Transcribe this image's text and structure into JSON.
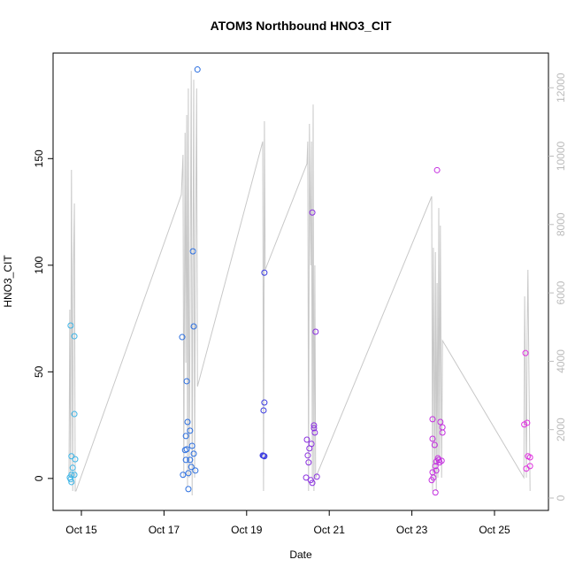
{
  "chart_data": {
    "type": "scatter",
    "title": "ATOM3 Northbound HNO3_CIT",
    "x_label": "Date",
    "y_label": "HNO3_CIT",
    "xlim": [
      14.315,
      26.306
    ],
    "ylim": [
      -15,
      199.5
    ],
    "y2lim": [
      -362,
      13014
    ],
    "xticks": [
      {
        "value": 15,
        "label": "Oct 15"
      },
      {
        "value": 17,
        "label": "Oct 17"
      },
      {
        "value": 19,
        "label": "Oct 19"
      },
      {
        "value": 21,
        "label": "Oct 21"
      },
      {
        "value": 23,
        "label": "Oct 23"
      },
      {
        "value": 25,
        "label": "Oct 25"
      }
    ],
    "yticks": [
      0,
      50,
      100,
      150
    ],
    "y2ticks": [
      0,
      2000,
      4000,
      6000,
      8000,
      10000,
      12000
    ],
    "series": [
      {
        "axis": "y2",
        "color": "#c8c8c8",
        "x": [
          14.7,
          14.72,
          14.74,
          14.76,
          14.79,
          14.81,
          14.83,
          14.85,
          14.87,
          17.42,
          17.46,
          17.48,
          17.51,
          17.53,
          17.55,
          17.57,
          17.59,
          17.61,
          17.66,
          17.68,
          17.7,
          17.72,
          17.74,
          17.76,
          17.79,
          17.81,
          19.39,
          19.41,
          19.43,
          19.45,
          20.46,
          20.48,
          20.5,
          20.52,
          20.55,
          20.57,
          20.59,
          20.61,
          20.63,
          20.65,
          20.67,
          23.48,
          23.5,
          23.52,
          23.55,
          23.57,
          23.59,
          23.61,
          23.63,
          23.65,
          23.67,
          23.69,
          23.72,
          23.74,
          25.71,
          25.73,
          25.77,
          25.79,
          25.81,
          25.86
        ],
        "values": [
          595,
          5510,
          595,
          9598,
          207,
          6804,
          8615,
          207,
          207,
          8873,
          10038,
          595,
          10684,
          3958,
          11202,
          336,
          11978,
          595,
          12495,
          78,
          6804,
          12236,
          595,
          6804,
          11978,
          3260,
          10426,
          207,
          11021,
          6675,
          9779,
          10426,
          207,
          10943,
          6804,
          10426,
          595,
          11512,
          207,
          6804,
          595,
          8822,
          207,
          7321,
          595,
          7192,
          207,
          6286,
          595,
          8485,
          1112,
          7968,
          595,
          4605,
          595,
          5898,
          595,
          4786,
          6675,
          207
        ]
      },
      {
        "color": "#3cb4e6",
        "x": [
          14.74,
          14.76,
          14.74,
          14.76,
          14.79,
          14.76,
          14.83,
          14.83,
          14.83,
          14.85,
          14.72
        ],
        "values": [
          71.7,
          1.7,
          -0.4,
          -1.7,
          5,
          10.4,
          66.7,
          30.2,
          1.7,
          9,
          0.4
        ]
      },
      {
        "color": "#2a6ee0",
        "x": [
          17.81,
          17.7,
          17.72,
          17.44,
          17.55,
          17.57,
          17.53,
          17.63,
          17.51,
          17.55,
          17.68,
          17.72,
          17.63,
          17.53,
          17.66,
          17.76,
          17.59,
          17.46,
          17.59
        ],
        "values": [
          191.8,
          106.5,
          71.3,
          66.3,
          45.6,
          26.5,
          19.9,
          22.4,
          13.3,
          13.7,
          15.3,
          11.6,
          8.7,
          8.7,
          5.4,
          3.7,
          2.5,
          1.7,
          -5
        ]
      },
      {
        "color": "#3a3ae0",
        "x": [
          19.43,
          19.43,
          19.41,
          19.39,
          19.43,
          19.41
        ],
        "values": [
          96.5,
          35.6,
          31.9,
          10.8,
          10.4,
          10.6
        ]
      },
      {
        "color": "#8a2ee0",
        "x": [
          20.59,
          20.67,
          20.63,
          20.63,
          20.65,
          20.46,
          20.57,
          20.52,
          20.48,
          20.5,
          20.44,
          20.7,
          20.55,
          20.59
        ],
        "values": [
          124.7,
          68.8,
          24.9,
          23.6,
          21.5,
          18.2,
          16.2,
          14.1,
          10.8,
          7.5,
          0.4,
          0.8,
          -0.8,
          -2.1
        ]
      },
      {
        "color": "#c42ee0",
        "x": [
          23.61,
          23.5,
          23.5,
          23.55,
          23.69,
          23.74,
          23.74,
          23.65,
          23.67,
          23.59,
          23.63,
          23.72,
          23.57,
          23.5,
          23.48,
          23.52,
          23.59,
          23.57
        ],
        "values": [
          144.6,
          27.8,
          18.6,
          15.7,
          26.5,
          24.0,
          21.5,
          8.7,
          7.5,
          7.9,
          9.5,
          8.3,
          5.8,
          2.9,
          -0.8,
          0.4,
          3.7,
          -6.6
        ]
      },
      {
        "color": "#e030e0",
        "x": [
          25.75,
          25.79,
          25.72,
          25.81,
          25.86,
          25.77,
          25.86
        ],
        "values": [
          58.8,
          26.1,
          25.3,
          10.4,
          9.9,
          4.6,
          5.8
        ]
      }
    ]
  }
}
